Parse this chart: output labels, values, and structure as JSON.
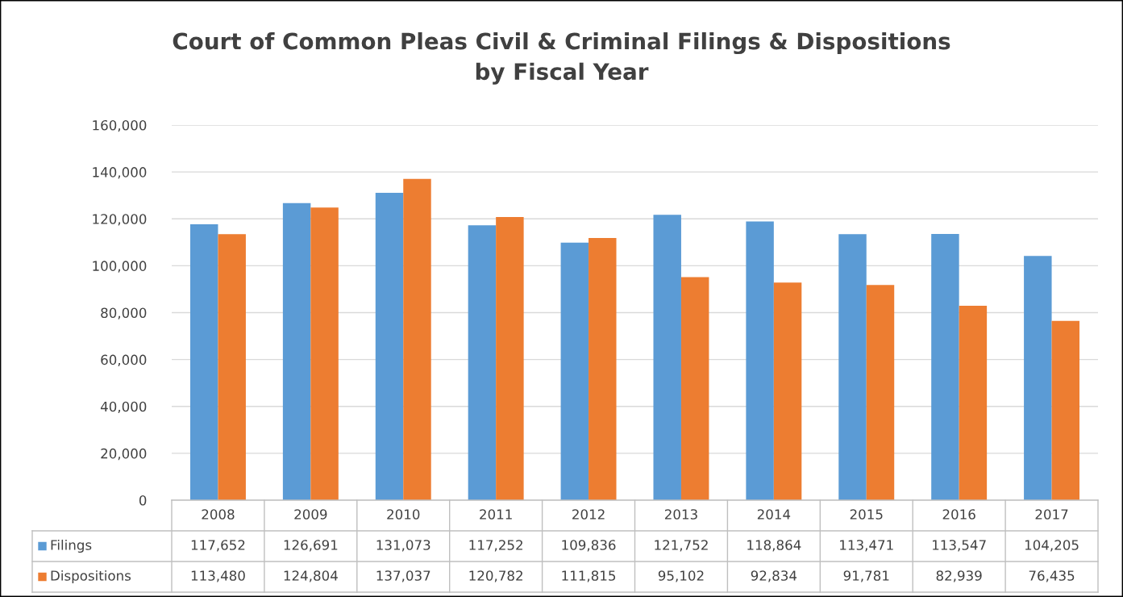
{
  "chart_data": {
    "type": "bar",
    "title": "Court of Common Pleas Civil & Criminal Filings & Dispositions by Fiscal Year",
    "categories": [
      "2008",
      "2009",
      "2010",
      "2011",
      "2012",
      "2013",
      "2014",
      "2015",
      "2016",
      "2017"
    ],
    "series": [
      {
        "name": "Filings",
        "color": "#5b9bd5",
        "values": [
          117652,
          126691,
          131073,
          117252,
          109836,
          121752,
          118864,
          113471,
          113547,
          104205
        ],
        "value_labels": [
          "117,652",
          "126,691",
          "131,073",
          "117,252",
          "109,836",
          "121,752",
          "118,864",
          "113,471",
          "113,547",
          "104,205"
        ]
      },
      {
        "name": "Dispositions",
        "color": "#ed7d31",
        "values": [
          113480,
          124804,
          137037,
          120782,
          111815,
          95102,
          92834,
          91781,
          82939,
          76435
        ],
        "value_labels": [
          "113,480",
          "124,804",
          "137,037",
          "120,782",
          "111,815",
          "95,102",
          "92,834",
          "91,781",
          "82,939",
          "76,435"
        ]
      }
    ],
    "ylim": [
      0,
      160000
    ],
    "yticks": [
      {
        "value": 0,
        "label": "0"
      },
      {
        "value": 20000,
        "label": "20,000"
      },
      {
        "value": 40000,
        "label": "40,000"
      },
      {
        "value": 60000,
        "label": "60,000"
      },
      {
        "value": 80000,
        "label": "80,000"
      },
      {
        "value": 100000,
        "label": "100,000"
      },
      {
        "value": 120000,
        "label": "120,000"
      },
      {
        "value": 140000,
        "label": "140,000"
      },
      {
        "value": 160000,
        "label": "160,000"
      }
    ],
    "grid": "y",
    "legend": "bottom left"
  }
}
